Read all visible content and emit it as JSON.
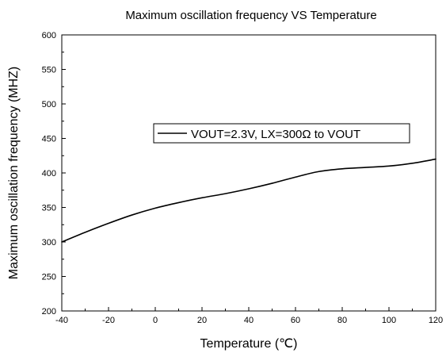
{
  "chart_data": {
    "type": "line",
    "title": "Maximum oscillation frequency VS Temperature",
    "xlabel": "Temperature (℃)",
    "ylabel": "Maximum oscillation frequency (MHZ)",
    "xlim": [
      -40,
      120
    ],
    "ylim": [
      200,
      600
    ],
    "xticks": [
      -40,
      -20,
      0,
      20,
      40,
      60,
      80,
      100,
      120
    ],
    "yticks": [
      200,
      250,
      300,
      350,
      400,
      450,
      500,
      550,
      600
    ],
    "xtick_labels": [
      "-40",
      "-20",
      "0",
      "20",
      "40",
      "60",
      "80",
      "100",
      "120"
    ],
    "ytick_labels": [
      "200",
      "250",
      "300",
      "350",
      "400",
      "450",
      "500",
      "550",
      "600"
    ],
    "grid": false,
    "legend_position": "center-right",
    "colors": {
      "line": "#000000",
      "axis": "#000000",
      "background": "#ffffff"
    },
    "series": [
      {
        "name": "VOUT=2.3V, LX=300Ω to VOUT",
        "x": [
          -40,
          -30,
          -20,
          -10,
          0,
          10,
          20,
          30,
          40,
          50,
          60,
          70,
          80,
          90,
          100,
          110,
          120
        ],
        "y": [
          300,
          314,
          327,
          339,
          349,
          357,
          364,
          370,
          377,
          385,
          394,
          402,
          406,
          408,
          410,
          414,
          420
        ]
      }
    ]
  }
}
